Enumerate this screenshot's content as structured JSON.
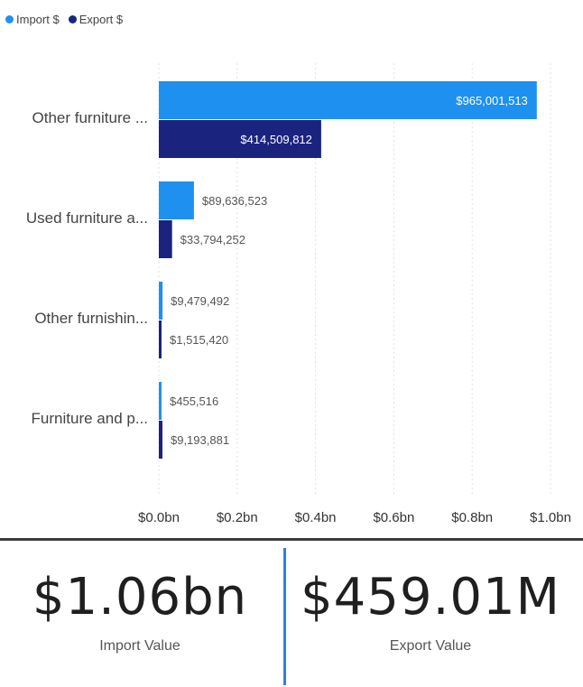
{
  "legend": {
    "items": [
      {
        "label": "Import $",
        "color": "#1e90f0"
      },
      {
        "label": "Export $",
        "color": "#1a237e"
      }
    ]
  },
  "chart_data": {
    "type": "bar",
    "orientation": "horizontal",
    "categories": [
      "Other furniture ...",
      "Used furniture a...",
      "Other furnishin...",
      "Furniture and p..."
    ],
    "series": [
      {
        "name": "Import $",
        "color": "#1e90f0",
        "values": [
          965001513,
          89636523,
          9479492,
          455516
        ],
        "labels": [
          "$965,001,513",
          "$89,636,523",
          "$9,479,492",
          "$455,516"
        ]
      },
      {
        "name": "Export $",
        "color": "#1a237e",
        "values": [
          414509812,
          33794252,
          1515420,
          9193881
        ],
        "labels": [
          "$414,509,812",
          "$33,794,252",
          "$1,515,420",
          "$9,193,881"
        ]
      }
    ],
    "xlim": [
      0,
      1000000000
    ],
    "xticks": [
      0,
      200000000,
      400000000,
      600000000,
      800000000,
      1000000000
    ],
    "xtick_labels": [
      "$0.0bn",
      "$0.2bn",
      "$0.4bn",
      "$0.6bn",
      "$0.8bn",
      "$1.0bn"
    ],
    "grid": "vertical dotted",
    "legend_position": "top-left"
  },
  "kpis": {
    "import": {
      "value": "$1.06bn",
      "label": "Import Value"
    },
    "export": {
      "value": "$459.01M",
      "label": "Export Value"
    }
  },
  "colors": {
    "import": "#1e90f0",
    "export": "#1a237e",
    "divider": "#2f7ee8"
  }
}
